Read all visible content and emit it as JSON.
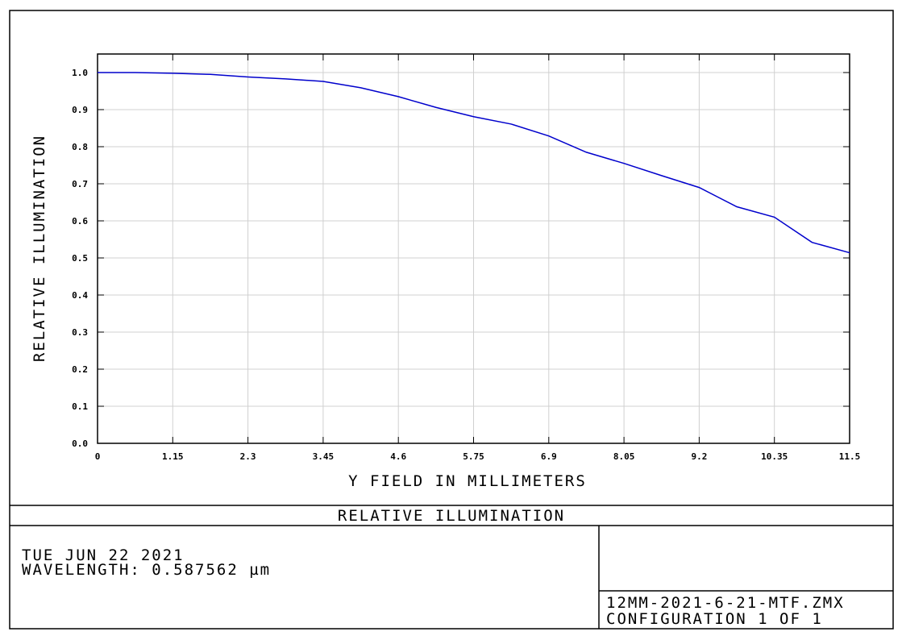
{
  "chart_data": {
    "type": "line",
    "title": "RELATIVE ILLUMINATION",
    "x_label": "Y FIELD IN MILLIMETERS",
    "y_label": "RELATIVE ILLUMINATION",
    "x": [
      0,
      0.575,
      1.15,
      1.725,
      2.3,
      2.875,
      3.45,
      4.025,
      4.6,
      5.175,
      5.75,
      6.325,
      6.9,
      7.475,
      8.05,
      8.625,
      9.2,
      9.775,
      10.35,
      10.925,
      11.5
    ],
    "series": [
      {
        "name": "RELATIVE ILLUMINATION",
        "color": "#0000cc",
        "values": [
          1.0,
          1.0,
          0.998,
          0.995,
          0.988,
          0.983,
          0.976,
          0.959,
          0.935,
          0.906,
          0.881,
          0.861,
          0.829,
          0.785,
          0.755,
          0.722,
          0.69,
          0.638,
          0.61,
          0.542,
          0.514
        ]
      }
    ],
    "xlim": [
      0,
      11.5
    ],
    "ylim": [
      0,
      1.05
    ],
    "xticks": [
      0,
      1.15,
      2.3,
      3.45,
      4.6,
      5.75,
      6.9,
      8.05,
      9.2,
      10.35,
      11.5
    ],
    "yticks": [
      {
        "value": 0,
        "label": "0.0"
      },
      0.1,
      0.2,
      0.3,
      0.4,
      0.5,
      0.6,
      0.7,
      0.8,
      0.9,
      {
        "value": 1,
        "label": "1.0"
      }
    ],
    "grid": true
  },
  "footer": {
    "date": "TUE JUN 22 2021",
    "wavelength": "WAVELENGTH: 0.587562 µm",
    "file": "12MM-2021-6-21-MTF.ZMX",
    "configuration": "CONFIGURATION 1 OF 1"
  }
}
